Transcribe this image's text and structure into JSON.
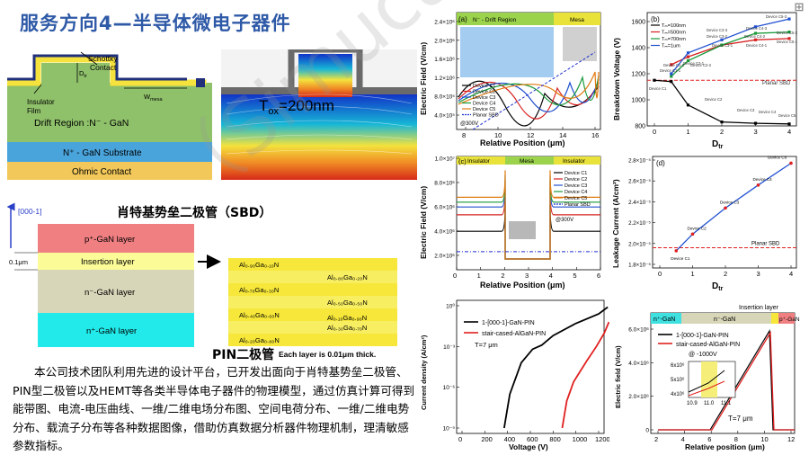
{
  "slide": {
    "title": "服务方向4—半导体微电子器件",
    "sbd_caption": "肖特基势垒二极管（SBD）",
    "pin_caption": "PIN二极管",
    "paragraph": "本公司技术团队利用先进的设计平台，已开发出面向于肖特基势垒二极管、PIN型二极管以及HEMT等各类半导体电子器件的物理模型，通过仿真计算可得到能带图、电流-电压曲线、一维/二维电场分布图、空间电荷分布、一维/二维电势分布、载流子分布等各种数据图像，借助仿真数据分析器件物理机制，理清敏感参数指标。",
    "watermark": "（Simucal）",
    "corner_icon": "⊞"
  },
  "sbd_diagram": {
    "schottky": "Schottky",
    "contact": "Contact",
    "insulator": "Insulator",
    "film": "Film",
    "dtr": "D",
    "dtr_sub": "tr",
    "wmesa": "W",
    "wmesa_sub": "mesa",
    "drift": "Drift Region :N⁻ - GaN",
    "substrate": "N⁺ - GaN Substrate",
    "ohmic": "Ohmic Contact",
    "tox_label": "T",
    "tox_sub": "ox",
    "tox_value": "=200nm"
  },
  "pin_diagram": {
    "axis": "[000-1]",
    "thickness": "0.1μm",
    "layers": [
      "p⁺-GaN layer",
      "Insertion layer",
      "n⁻-GaN layer",
      "n⁺-GaN layer"
    ],
    "insertion_rows": [
      [
        "Al₀.₉₀Ga₀.₁₀N",
        ""
      ],
      [
        "",
        "Al₀.₈₀Ga₀.₂₀N"
      ],
      [
        "Al₀.₇₀Ga₀.₃₀N",
        ""
      ],
      [
        "",
        "Al₀.₅₀Ga₀.₅₀N"
      ],
      [
        "Al₀.₄₀Ga₀.₆₀N",
        ""
      ],
      [
        "",
        "Al₀.₃₀Ga₀.₇₀N"
      ],
      [
        "Al₀.₂₀Ga₀.₈₀N",
        ""
      ],
      [
        "",
        "Al₀.₁₀Ga₀.₉₀N"
      ]
    ],
    "note": "Each layer is 0.01μm thick."
  },
  "chart_data": [
    {
      "type": "line",
      "panel": "(a)",
      "xlabel": "Relative Position (μm)",
      "ylabel": "Electric Field (V/cm)",
      "xticks": [
        "8",
        "10",
        "12",
        "14",
        "16"
      ],
      "yticks": [
        "4.0×10⁵",
        "8.0×10⁵",
        "1.2×10⁶",
        "1.6×10⁶",
        "2.0×10⁶",
        "2.4×10⁶"
      ],
      "annotations": [
        "N⁻ - Drift Region",
        "Mesa",
        "@300V"
      ],
      "legend": [
        "Device C1",
        "Device C2",
        "Device C3",
        "Device C4",
        "Device C5",
        "Planar SBD"
      ],
      "series": [
        {
          "name": "Device C1",
          "color": "#000000"
        },
        {
          "name": "Device C2",
          "color": "#d62020"
        },
        {
          "name": "Device C3",
          "color": "#2050d0"
        },
        {
          "name": "Device C4",
          "color": "#1a9a3a"
        },
        {
          "name": "Device C5",
          "color": "#e07a10"
        },
        {
          "name": "Planar SBD",
          "color": "#1c2fd0"
        }
      ]
    },
    {
      "type": "line",
      "panel": "(b)",
      "xlabel": "D",
      "xlabel_sub": "tr",
      "ylabel": "Breakdown Voltage (V)",
      "x": [
        0,
        1,
        2,
        3,
        4
      ],
      "ylim": [
        800,
        1600
      ],
      "yticks": [
        "800",
        "1000",
        "1200",
        "1400",
        "1600"
      ],
      "legend": [
        "Tₘ=100nm",
        "Tₘ=500nm",
        "Tₘ=700nm",
        "Tₘ=1um"
      ],
      "series": [
        {
          "name": "Tₘ=100nm",
          "color": "#000000",
          "points": [
            [
              0,
              1150
            ],
            [
              0.5,
              1140
            ],
            [
              1,
              960
            ],
            [
              2,
              830
            ],
            [
              3,
              820
            ],
            [
              4,
              815
            ]
          ]
        },
        {
          "name": "Tₘ=500nm",
          "color": "#d62020",
          "points": [
            [
              0.5,
              1270
            ],
            [
              1,
              1330
            ],
            [
              2,
              1420
            ],
            [
              3,
              1460
            ],
            [
              4,
              1470
            ]
          ]
        },
        {
          "name": "Tₘ=700nm",
          "color": "#1a9a3a",
          "points": [
            [
              0.5,
              1180
            ],
            [
              1,
              1300
            ],
            [
              2,
              1420
            ],
            [
              3,
              1510
            ],
            [
              4,
              1520
            ]
          ]
        },
        {
          "name": "Tₘ=1um",
          "color": "#2050d0",
          "points": [
            [
              0.5,
              1200
            ],
            [
              1,
              1360
            ],
            [
              2,
              1460
            ],
            [
              3,
              1560
            ],
            [
              4,
              1620
            ]
          ]
        }
      ],
      "reference": {
        "name": "Planar SBD",
        "value": 1150,
        "color": "#e02020"
      },
      "labels": [
        "Device C1",
        "Device C2",
        "Device C3",
        "Device C4",
        "Device C5",
        "Device C1-1",
        "Device C1-2",
        "Device C2-1",
        "Device C2-2",
        "Device C3-1",
        "Device C3-2",
        "Device C3-3",
        "Device C4-1",
        "Device C4-2",
        "Device C4-3",
        "Device C5-1",
        "Device C5-2",
        "Device C5-3",
        "Planar SBD"
      ]
    },
    {
      "type": "line",
      "panel": "(c)",
      "xlabel": "Relative Position (μm)",
      "ylabel": "Electric Field (V/cm)",
      "xticks": [
        "0",
        "1",
        "2",
        "3",
        "4",
        "5",
        "6"
      ],
      "yticks": [
        "2.0×10⁶",
        "4.0×10⁶",
        "6.0×10⁶",
        "8.0×10⁶",
        "1.0×10⁷"
      ],
      "annotations": [
        "Insulator",
        "Mesa",
        "Insulator",
        "@300V"
      ],
      "legend": [
        "Device C1",
        "Device C2",
        "Device C3",
        "Device C4",
        "Device C5",
        "Planar SBD"
      ],
      "plateau_levels": {
        "Device C1": 3.5,
        "Device C2": 5.2,
        "Device C3": 6.0,
        "Device C4": 6.5,
        "Device C5": 7.0,
        "Planar SBD": 1.4
      },
      "series": [
        {
          "name": "Device C1",
          "color": "#000000"
        },
        {
          "name": "Device C2",
          "color": "#d62020"
        },
        {
          "name": "Device C3",
          "color": "#2050d0"
        },
        {
          "name": "Device C4",
          "color": "#1a9a3a"
        },
        {
          "name": "Device C5",
          "color": "#e07a10"
        },
        {
          "name": "Planar SBD",
          "color": "#1c2fd0"
        }
      ]
    },
    {
      "type": "line",
      "panel": "(d)",
      "xlabel": "D",
      "xlabel_sub": "tr",
      "ylabel": "Leakage Current (A/cm²)",
      "yticks": [
        "1.8×10⁻⁵",
        "2.0×10⁻⁵",
        "2.2×10⁻⁵",
        "2.4×10⁻⁵",
        "2.6×10⁻⁵",
        "2.8×10⁻⁵"
      ],
      "ylim": [
        1.8,
        2.8
      ],
      "x": [
        0,
        1,
        2,
        3,
        4
      ],
      "series": [
        {
          "name": "Devices",
          "color": "#2050d0",
          "points": [
            [
              0.5,
              1.93
            ],
            [
              1,
              2.09
            ],
            [
              2,
              2.34
            ],
            [
              3,
              2.56
            ],
            [
              4,
              2.77
            ]
          ]
        }
      ],
      "reference": {
        "name": "Planar SBD",
        "value": 1.96,
        "color": "#e02020"
      },
      "labels": [
        "Device C1",
        "Device C2",
        "Device C3",
        "Device C4",
        "Device C5",
        "Planar SBD"
      ]
    },
    {
      "type": "line",
      "panel": "IV",
      "xlabel": "Voltage (V)",
      "ylabel": "Current density (A/cm²)",
      "xticks": [
        "0",
        "200",
        "400",
        "600",
        "800",
        "1000",
        "1200"
      ],
      "yticks": [
        "10⁻⁹",
        "10⁻⁶",
        "10⁻³",
        "10⁰"
      ],
      "legend": [
        "1-[000-1]-GaN-PIN",
        "stair-cased-AlGaN-PIN"
      ],
      "annotations": [
        "T=7 μm"
      ],
      "series": [
        {
          "name": "1-[000-1]-GaN-PIN",
          "color": "#000000",
          "points": [
            [
              370,
              -9
            ],
            [
              420,
              -6.5
            ],
            [
              520,
              -4.2
            ],
            [
              620,
              -3.2
            ],
            [
              700,
              -2.9
            ],
            [
              800,
              -2.2
            ],
            [
              1000,
              -1.3
            ],
            [
              1200,
              -0.6
            ],
            [
              1280,
              -0.1
            ]
          ]
        },
        {
          "name": "stair-cased-AlGaN-PIN",
          "color": "#e02020",
          "points": [
            [
              880,
              -9
            ],
            [
              920,
              -7
            ],
            [
              980,
              -5.6
            ],
            [
              1040,
              -4.8
            ],
            [
              1100,
              -4.0
            ],
            [
              1180,
              -3.0
            ],
            [
              1250,
              -2.0
            ],
            [
              1290,
              -1.2
            ]
          ]
        }
      ]
    },
    {
      "type": "line",
      "panel": "field",
      "xlabel": "Relative position (μm)",
      "ylabel": "Electric field (V/cm)",
      "xticks": [
        "2",
        "4",
        "6",
        "8",
        "10",
        "12"
      ],
      "yticks": [
        "0",
        "2.0×10⁶",
        "4.0×10⁶",
        "6.0×10⁶"
      ],
      "region_labels": [
        "n⁺-GaN",
        "n⁻-GaN",
        "Insertion layer",
        "p⁺-GaN"
      ],
      "legend": [
        "1-[000-1]-GaN-PIN",
        "stair-cased-AlGaN-PIN",
        "@ -1000V"
      ],
      "annotations": [
        "T=7 μm"
      ],
      "inset": {
        "xticks": [
          "10.9",
          "11.0",
          "11.1"
        ],
        "yticks": [
          "4x10⁶",
          "5x10⁶",
          "6x10⁶"
        ]
      }
    }
  ]
}
